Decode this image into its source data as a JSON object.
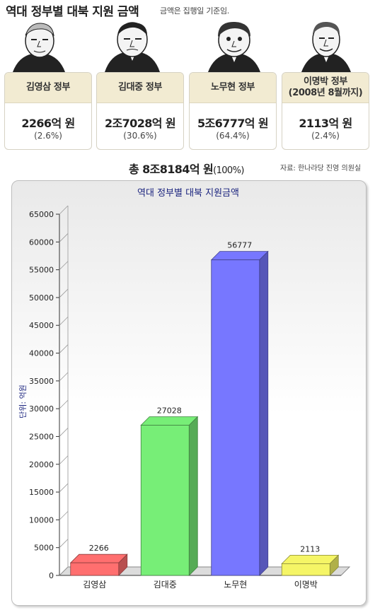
{
  "header": {
    "title": "역대 정부별 대북 지원 금액",
    "note": "금액은 집행일 기준임."
  },
  "cards": [
    {
      "name": "김영삼 정부",
      "name2": "",
      "amount": "2266억 원",
      "percent": "(2.6%)"
    },
    {
      "name": "김대중 정부",
      "name2": "",
      "amount": "2조7028억 원",
      "percent": "(30.6%)"
    },
    {
      "name": "노무현 정부",
      "name2": "",
      "amount": "5조6777억 원",
      "percent": "(64.4%)"
    },
    {
      "name": "이명박 정부",
      "name2": "(2008년 8월까지)",
      "amount": "2113억 원",
      "percent": "(2.4%)"
    }
  ],
  "summary": {
    "total_amount": "총 8조8184억 원",
    "total_percent": "(100%)",
    "source": "자료: 한나라당 진영 의원실"
  },
  "chart_data": {
    "type": "bar",
    "title": "역대 정부별 대북 지원금액",
    "ylabel": "단위: 억원",
    "xlabel": "",
    "categories": [
      "김영삼",
      "김대중",
      "노무현",
      "이명박"
    ],
    "values": [
      2266,
      27028,
      56777,
      2113
    ],
    "colors": [
      "#ff6f6f",
      "#77ee77",
      "#7777ff",
      "#f5f566"
    ],
    "ylim": [
      0,
      65000
    ],
    "yticks": [
      0,
      5000,
      10000,
      15000,
      20000,
      25000,
      30000,
      35000,
      40000,
      45000,
      50000,
      55000,
      60000,
      65000
    ],
    "grid": false,
    "legend": "none"
  }
}
